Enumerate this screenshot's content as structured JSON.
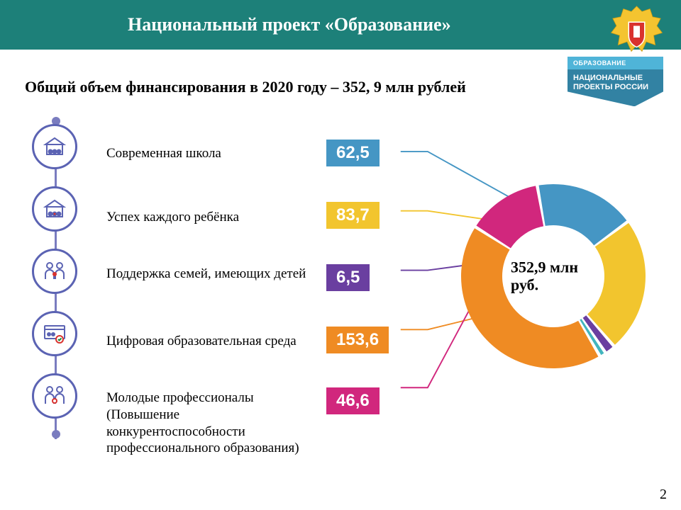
{
  "header": {
    "title": "Национальный проект «Образование»"
  },
  "subtitle": "Общий объем финансирования в 2020 году – 352, 9 млн рублей",
  "np_logo": {
    "line1": "ОБРАЗОВАНИЕ",
    "line2": "НАЦИОНАЛЬНЫЕ ПРОЕКТЫ РОССИИ"
  },
  "items": [
    {
      "label": "Современная школа",
      "value": "62,5",
      "value_num": 62.5,
      "color": "#4596c4"
    },
    {
      "label": "Успех каждого ребёнка",
      "value": "83,7",
      "value_num": 83.7,
      "color": "#f2c52e"
    },
    {
      "label": "Поддержка семей, имеющих детей",
      "value": "6,5",
      "value_num": 6.5,
      "color": "#6a3fa0"
    },
    {
      "label": "Цифровая образовательная среда",
      "value": "153,6",
      "value_num": 153.6,
      "color": "#ef8b23"
    },
    {
      "label": "Молодые профессионалы (Повышение конкурентоспособности профессионального образования)",
      "value": "46,6",
      "value_num": 46.6,
      "color": "#d1277d"
    }
  ],
  "donut": {
    "center_text": "352,9 млн руб.",
    "total": 352.9,
    "slice_order_colors": [
      "#d1277d",
      "#4596c4",
      "#f2c52e",
      "#6a3fa0",
      "#42b5be",
      "#ef8b23"
    ],
    "slice_order_values": [
      46.6,
      62.5,
      83.7,
      6.5,
      4.0,
      149.6
    ],
    "inner_hole_color": "#ffffff",
    "outer_radius": 130,
    "inner_radius": 72,
    "gap_deg": 2
  },
  "layout": {
    "icon_row_tops": [
      0,
      88,
      176,
      264,
      352
    ],
    "label_tops": [
      10,
      100,
      180,
      275,
      355
    ],
    "badge_tops": [
      5,
      93,
      181,
      269,
      355
    ]
  },
  "styling": {
    "header_bg": "#1d8079",
    "icon_border": "#5b63b3",
    "timeline_color": "#7a7cbf",
    "badge_font": "Arial",
    "body_font": "Times New Roman"
  },
  "page_number": "2"
}
